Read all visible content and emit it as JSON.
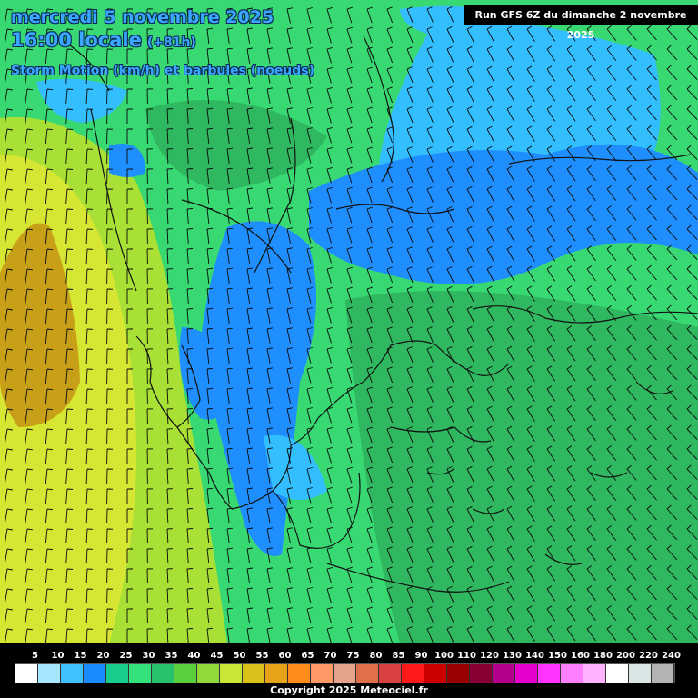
{
  "header": {
    "date": "mercredi 5 novembre 2025",
    "time": "16:00 locale",
    "offset": "(+81h)",
    "parameter": "Storm Motion (km/h) et barbules (noeuds)",
    "run": "Run GFS 6Z du dimanche 2 novembre 2025"
  },
  "legend": {
    "labels": [
      "5",
      "10",
      "15",
      "20",
      "25",
      "30",
      "35",
      "40",
      "45",
      "50",
      "55",
      "60",
      "65",
      "70",
      "75",
      "80",
      "85",
      "90",
      "100",
      "110",
      "120",
      "130",
      "140",
      "150",
      "160",
      "180",
      "200",
      "220",
      "240"
    ],
    "colors": [
      "#ffffff",
      "#a6e6ff",
      "#3fc1ff",
      "#1a8cff",
      "#1acc8c",
      "#33e07a",
      "#26c26b",
      "#5ccf3c",
      "#8fd93a",
      "#c8e635",
      "#d9c21a",
      "#e6a31a",
      "#ff8c1a",
      "#ff9966",
      "#e6a38c",
      "#e0704a",
      "#d94040",
      "#ff1a1a",
      "#cc0000",
      "#990000",
      "#880033",
      "#b3008c",
      "#e600cc",
      "#ff33ff",
      "#ff80ff",
      "#ffb3ff",
      "#ffffff",
      "#d9e6e6",
      "#b3b3b3"
    ]
  },
  "map": {
    "colors": {
      "bg": "#38d872",
      "dark_green": "#2fb85f",
      "light_blue": "#33bfff",
      "blue": "#1f8fff",
      "yellow_green": "#a8e035",
      "yellow": "#d6e633",
      "olive": "#c8a018",
      "coast": "#111111"
    }
  },
  "copyright": "Copyright 2025 Meteociel.fr"
}
